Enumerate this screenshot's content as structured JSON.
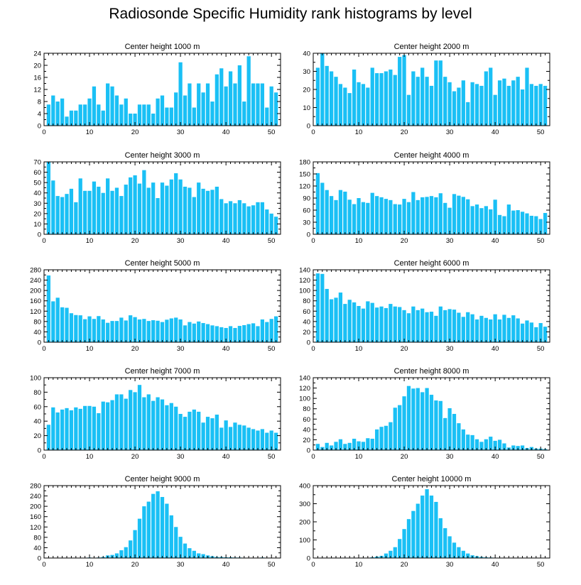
{
  "title": "Radiosonde Specific Humidity rank histograms by level",
  "colors": {
    "bar": "#1ac0f5",
    "axis": "#000000"
  },
  "chart_data": [
    {
      "type": "bar",
      "title": "Center height 1000 m",
      "xlabel": "",
      "ylabel": "",
      "xlim": [
        0,
        52
      ],
      "xticks": [
        0,
        10,
        20,
        30,
        40,
        50
      ],
      "ylim": [
        0,
        24
      ],
      "yticks": [
        0,
        4,
        8,
        12,
        16,
        20,
        24
      ],
      "categories": [
        1,
        2,
        3,
        4,
        5,
        6,
        7,
        8,
        9,
        10,
        11,
        12,
        13,
        14,
        15,
        16,
        17,
        18,
        19,
        20,
        21,
        22,
        23,
        24,
        25,
        26,
        27,
        28,
        29,
        30,
        31,
        32,
        33,
        34,
        35,
        36,
        37,
        38,
        39,
        40,
        41,
        42,
        43,
        44,
        45,
        46,
        47,
        48,
        49,
        50,
        51
      ],
      "values": [
        7,
        10,
        8,
        9,
        3,
        5,
        5,
        7,
        7,
        9,
        13,
        7,
        5,
        14,
        13,
        10,
        7,
        9,
        4,
        4,
        7,
        7,
        7,
        4,
        9,
        10,
        6,
        6,
        11,
        21,
        10,
        14,
        6,
        14,
        11,
        14,
        8,
        17,
        19,
        13,
        18,
        14,
        20,
        8,
        23,
        14,
        14,
        14,
        6,
        13,
        11
      ]
    },
    {
      "type": "bar",
      "title": "Center height 2000 m",
      "xlabel": "",
      "ylabel": "",
      "xlim": [
        0,
        52
      ],
      "xticks": [
        0,
        10,
        20,
        30,
        40,
        50
      ],
      "ylim": [
        0,
        40
      ],
      "yticks": [
        0,
        10,
        20,
        30,
        40
      ],
      "categories": [
        1,
        2,
        3,
        4,
        5,
        6,
        7,
        8,
        9,
        10,
        11,
        12,
        13,
        14,
        15,
        16,
        17,
        18,
        19,
        20,
        21,
        22,
        23,
        24,
        25,
        26,
        27,
        28,
        29,
        30,
        31,
        32,
        33,
        34,
        35,
        36,
        37,
        38,
        39,
        40,
        41,
        42,
        43,
        44,
        45,
        46,
        47,
        48,
        49,
        50,
        51
      ],
      "values": [
        32,
        40,
        33,
        30,
        27,
        23,
        21,
        18,
        31,
        24,
        23,
        21,
        32,
        29,
        29,
        30,
        31,
        28,
        38,
        39,
        17,
        30,
        27,
        32,
        27,
        22,
        36,
        36,
        27,
        24,
        19,
        21,
        25,
        13,
        24,
        23,
        22,
        30,
        32,
        17,
        25,
        26,
        22,
        25,
        27,
        20,
        32,
        23,
        22,
        23,
        22
      ]
    },
    {
      "type": "bar",
      "title": "Center height 3000 m",
      "xlabel": "",
      "ylabel": "",
      "xlim": [
        0,
        52
      ],
      "xticks": [
        0,
        10,
        20,
        30,
        40,
        50
      ],
      "ylim": [
        0,
        70
      ],
      "yticks": [
        0,
        10,
        20,
        30,
        40,
        50,
        60,
        70
      ],
      "categories": [
        1,
        2,
        3,
        4,
        5,
        6,
        7,
        8,
        9,
        10,
        11,
        12,
        13,
        14,
        15,
        16,
        17,
        18,
        19,
        20,
        21,
        22,
        23,
        24,
        25,
        26,
        27,
        28,
        29,
        30,
        31,
        32,
        33,
        34,
        35,
        36,
        37,
        38,
        39,
        40,
        41,
        42,
        43,
        44,
        45,
        46,
        47,
        48,
        49,
        50,
        51
      ],
      "values": [
        70,
        52,
        37,
        36,
        39,
        44,
        31,
        54,
        42,
        42,
        51,
        46,
        40,
        54,
        42,
        45,
        37,
        48,
        55,
        57,
        49,
        62,
        45,
        50,
        35,
        50,
        47,
        53,
        59,
        53,
        46,
        45,
        36,
        50,
        44,
        42,
        43,
        46,
        34,
        30,
        32,
        30,
        33,
        30,
        27,
        28,
        31,
        31,
        24,
        20,
        17
      ]
    },
    {
      "type": "bar",
      "title": "Center height 4000 m",
      "xlabel": "",
      "ylabel": "",
      "xlim": [
        0,
        52
      ],
      "xticks": [
        0,
        10,
        20,
        30,
        40,
        50
      ],
      "ylim": [
        0,
        180
      ],
      "yticks": [
        0,
        30,
        60,
        90,
        120,
        150,
        180
      ],
      "categories": [
        1,
        2,
        3,
        4,
        5,
        6,
        7,
        8,
        9,
        10,
        11,
        12,
        13,
        14,
        15,
        16,
        17,
        18,
        19,
        20,
        21,
        22,
        23,
        24,
        25,
        26,
        27,
        28,
        29,
        30,
        31,
        32,
        33,
        34,
        35,
        36,
        37,
        38,
        39,
        40,
        41,
        42,
        43,
        44,
        45,
        46,
        47,
        48,
        49,
        50,
        51
      ],
      "values": [
        152,
        128,
        110,
        95,
        85,
        110,
        106,
        86,
        75,
        90,
        80,
        78,
        103,
        95,
        92,
        88,
        85,
        75,
        74,
        88,
        80,
        105,
        85,
        92,
        93,
        95,
        92,
        102,
        78,
        66,
        100,
        96,
        93,
        87,
        70,
        74,
        65,
        70,
        62,
        86,
        48,
        45,
        74,
        59,
        60,
        56,
        52,
        46,
        45,
        38,
        53
      ]
    },
    {
      "type": "bar",
      "title": "Center height 5000 m",
      "xlabel": "",
      "ylabel": "",
      "xlim": [
        0,
        52
      ],
      "xticks": [
        0,
        10,
        20,
        30,
        40,
        50
      ],
      "ylim": [
        0,
        280
      ],
      "yticks": [
        0,
        40,
        80,
        120,
        160,
        200,
        240,
        280
      ],
      "categories": [
        1,
        2,
        3,
        4,
        5,
        6,
        7,
        8,
        9,
        10,
        11,
        12,
        13,
        14,
        15,
        16,
        17,
        18,
        19,
        20,
        21,
        22,
        23,
        24,
        25,
        26,
        27,
        28,
        29,
        30,
        31,
        32,
        33,
        34,
        35,
        36,
        37,
        38,
        39,
        40,
        41,
        42,
        43,
        44,
        45,
        46,
        47,
        48,
        49,
        50,
        51
      ],
      "values": [
        258,
        158,
        172,
        135,
        133,
        112,
        105,
        104,
        89,
        100,
        90,
        101,
        88,
        75,
        82,
        82,
        95,
        84,
        104,
        97,
        88,
        90,
        82,
        85,
        83,
        78,
        87,
        92,
        95,
        88,
        65,
        78,
        72,
        80,
        74,
        70,
        65,
        62,
        58,
        55,
        62,
        55,
        63,
        66,
        70,
        73,
        62,
        88,
        78,
        90,
        100
      ]
    },
    {
      "type": "bar",
      "title": "Center height 6000 m",
      "xlabel": "",
      "ylabel": "",
      "xlim": [
        0,
        52
      ],
      "xticks": [
        0,
        10,
        20,
        30,
        40,
        50
      ],
      "ylim": [
        0,
        140
      ],
      "yticks": [
        0,
        20,
        40,
        60,
        80,
        100,
        120,
        140
      ],
      "categories": [
        1,
        2,
        3,
        4,
        5,
        6,
        7,
        8,
        9,
        10,
        11,
        12,
        13,
        14,
        15,
        16,
        17,
        18,
        19,
        20,
        21,
        22,
        23,
        24,
        25,
        26,
        27,
        28,
        29,
        30,
        31,
        32,
        33,
        34,
        35,
        36,
        37,
        38,
        39,
        40,
        41,
        42,
        43,
        44,
        45,
        46,
        47,
        48,
        49,
        50,
        51
      ],
      "values": [
        133,
        132,
        103,
        83,
        86,
        96,
        74,
        82,
        77,
        70,
        65,
        79,
        76,
        67,
        69,
        66,
        74,
        69,
        68,
        62,
        56,
        69,
        62,
        65,
        58,
        59,
        51,
        69,
        62,
        64,
        63,
        57,
        49,
        58,
        54,
        44,
        51,
        47,
        44,
        54,
        44,
        53,
        47,
        52,
        46,
        36,
        42,
        38,
        29,
        37,
        30
      ]
    },
    {
      "type": "bar",
      "title": "Center height 7000 m",
      "xlabel": "",
      "ylabel": "",
      "xlim": [
        0,
        52
      ],
      "xticks": [
        0,
        10,
        20,
        30,
        40,
        50
      ],
      "ylim": [
        0,
        100
      ],
      "yticks": [
        0,
        20,
        40,
        60,
        80,
        100
      ],
      "categories": [
        1,
        2,
        3,
        4,
        5,
        6,
        7,
        8,
        9,
        10,
        11,
        12,
        13,
        14,
        15,
        16,
        17,
        18,
        19,
        20,
        21,
        22,
        23,
        24,
        25,
        26,
        27,
        28,
        29,
        30,
        31,
        32,
        33,
        34,
        35,
        36,
        37,
        38,
        39,
        40,
        41,
        42,
        43,
        44,
        45,
        46,
        47,
        48,
        49,
        50,
        51
      ],
      "values": [
        35,
        59,
        52,
        56,
        58,
        55,
        59,
        57,
        61,
        61,
        60,
        51,
        67,
        66,
        69,
        77,
        77,
        71,
        83,
        80,
        90,
        73,
        77,
        68,
        73,
        70,
        62,
        65,
        60,
        50,
        46,
        53,
        56,
        53,
        38,
        46,
        44,
        49,
        31,
        41,
        32,
        38,
        35,
        34,
        31,
        29,
        27,
        29,
        24,
        27,
        24
      ]
    },
    {
      "type": "bar",
      "title": "Center height 8000 m",
      "xlabel": "",
      "ylabel": "",
      "xlim": [
        0,
        52
      ],
      "xticks": [
        0,
        10,
        20,
        30,
        40,
        50
      ],
      "ylim": [
        0,
        140
      ],
      "yticks": [
        0,
        20,
        40,
        60,
        80,
        100,
        120,
        140
      ],
      "categories": [
        1,
        2,
        3,
        4,
        5,
        6,
        7,
        8,
        9,
        10,
        11,
        12,
        13,
        14,
        15,
        16,
        17,
        18,
        19,
        20,
        21,
        22,
        23,
        24,
        25,
        26,
        27,
        28,
        29,
        30,
        31,
        32,
        33,
        34,
        35,
        36,
        37,
        38,
        39,
        40,
        41,
        42,
        43,
        44,
        45,
        46,
        47,
        48,
        49,
        50,
        51
      ],
      "values": [
        12,
        6,
        14,
        9,
        16,
        21,
        12,
        14,
        22,
        17,
        16,
        23,
        22,
        40,
        45,
        47,
        54,
        82,
        87,
        104,
        124,
        119,
        120,
        112,
        120,
        107,
        96,
        95,
        62,
        81,
        70,
        52,
        40,
        30,
        29,
        21,
        16,
        21,
        26,
        18,
        20,
        13,
        5,
        9,
        8,
        9,
        4,
        6,
        3,
        3,
        2
      ]
    },
    {
      "type": "bar",
      "title": "Center height 9000 m",
      "xlabel": "",
      "ylabel": "",
      "xlim": [
        0,
        52
      ],
      "xticks": [
        0,
        10,
        20,
        30,
        40,
        50
      ],
      "ylim": [
        0,
        280
      ],
      "yticks": [
        0,
        40,
        80,
        120,
        160,
        200,
        240,
        280
      ],
      "categories": [
        1,
        2,
        3,
        4,
        5,
        6,
        7,
        8,
        9,
        10,
        11,
        12,
        13,
        14,
        15,
        16,
        17,
        18,
        19,
        20,
        21,
        22,
        23,
        24,
        25,
        26,
        27,
        28,
        29,
        30,
        31,
        32,
        33,
        34,
        35,
        36,
        37,
        38,
        39,
        40,
        41,
        42,
        43,
        44,
        45,
        46,
        47,
        48,
        49,
        50,
        51
      ],
      "values": [
        0,
        0,
        1,
        0,
        0,
        1,
        1,
        0,
        1,
        2,
        1,
        2,
        4,
        10,
        12,
        18,
        30,
        42,
        68,
        108,
        152,
        200,
        218,
        248,
        258,
        236,
        210,
        165,
        120,
        82,
        56,
        38,
        28,
        18,
        15,
        10,
        7,
        4,
        4,
        3,
        3,
        2,
        2,
        1,
        1,
        1,
        1,
        2,
        1,
        1,
        1
      ]
    },
    {
      "type": "bar",
      "title": "Center height 10000 m",
      "xlabel": "",
      "ylabel": "",
      "xlim": [
        0,
        52
      ],
      "xticks": [
        0,
        10,
        20,
        30,
        40,
        50
      ],
      "ylim": [
        0,
        400
      ],
      "yticks": [
        0,
        100,
        200,
        300,
        400
      ],
      "categories": [
        1,
        2,
        3,
        4,
        5,
        6,
        7,
        8,
        9,
        10,
        11,
        12,
        13,
        14,
        15,
        16,
        17,
        18,
        19,
        20,
        21,
        22,
        23,
        24,
        25,
        26,
        27,
        28,
        29,
        30,
        31,
        32,
        33,
        34,
        35,
        36,
        37,
        38,
        39,
        40,
        41,
        42,
        43,
        44,
        45,
        46,
        47,
        48,
        49,
        50,
        51
      ],
      "values": [
        0,
        0,
        0,
        0,
        0,
        0,
        1,
        0,
        1,
        1,
        2,
        2,
        4,
        8,
        12,
        25,
        40,
        60,
        105,
        160,
        215,
        260,
        300,
        345,
        380,
        345,
        310,
        220,
        165,
        120,
        85,
        60,
        40,
        25,
        15,
        10,
        6,
        4,
        3,
        2,
        2,
        1,
        1,
        1,
        1,
        1,
        1,
        1,
        1,
        1,
        1
      ]
    }
  ]
}
